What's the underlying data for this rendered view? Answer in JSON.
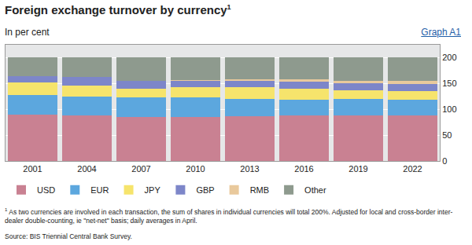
{
  "chart_data": {
    "type": "bar",
    "stacked": true,
    "title": "Foreign exchange turnover by currency",
    "title_note_marker": "1",
    "subtitle": "In per cent",
    "graph_label": "Graph A1",
    "footnote": {
      "marker": "1",
      "text": "As two currencies are involved in each transaction, the sum of shares in individual currencies will total 200%. Adjusted for local and cross-border inter-dealer double-counting, ie \"net-net\" basis; daily averages in April."
    },
    "source": "Source: BIS Triennial Central Bank Survey.",
    "categories": [
      "2001",
      "2004",
      "2007",
      "2010",
      "2013",
      "2016",
      "2019",
      "2022"
    ],
    "series": [
      {
        "name": "USD",
        "color": "#c98192",
        "values": [
          89.9,
          88.0,
          85.6,
          84.9,
          87.0,
          87.6,
          88.3,
          88.5
        ]
      },
      {
        "name": "EUR",
        "color": "#5ca7de",
        "values": [
          37.9,
          37.4,
          37.0,
          39.0,
          33.4,
          31.4,
          32.3,
          30.5
        ]
      },
      {
        "name": "JPY",
        "color": "#f6e46c",
        "values": [
          23.5,
          20.8,
          17.2,
          19.0,
          23.0,
          21.6,
          16.8,
          16.7
        ]
      },
      {
        "name": "GBP",
        "color": "#7d86c9",
        "values": [
          13.0,
          16.5,
          14.9,
          12.9,
          11.8,
          12.8,
          12.8,
          12.9
        ]
      },
      {
        "name": "RMB",
        "color": "#e9c99c",
        "values": [
          0.0,
          0.1,
          0.5,
          0.9,
          2.2,
          4.0,
          4.3,
          7.0
        ]
      },
      {
        "name": "Other",
        "color": "#8e9a8e",
        "values": [
          35.7,
          37.2,
          44.8,
          43.3,
          42.6,
          42.6,
          45.5,
          44.4
        ]
      }
    ],
    "ylim": [
      0,
      225
    ],
    "yticks": [
      0,
      50,
      100,
      150,
      200
    ],
    "grid": true,
    "legend": "bottom"
  }
}
